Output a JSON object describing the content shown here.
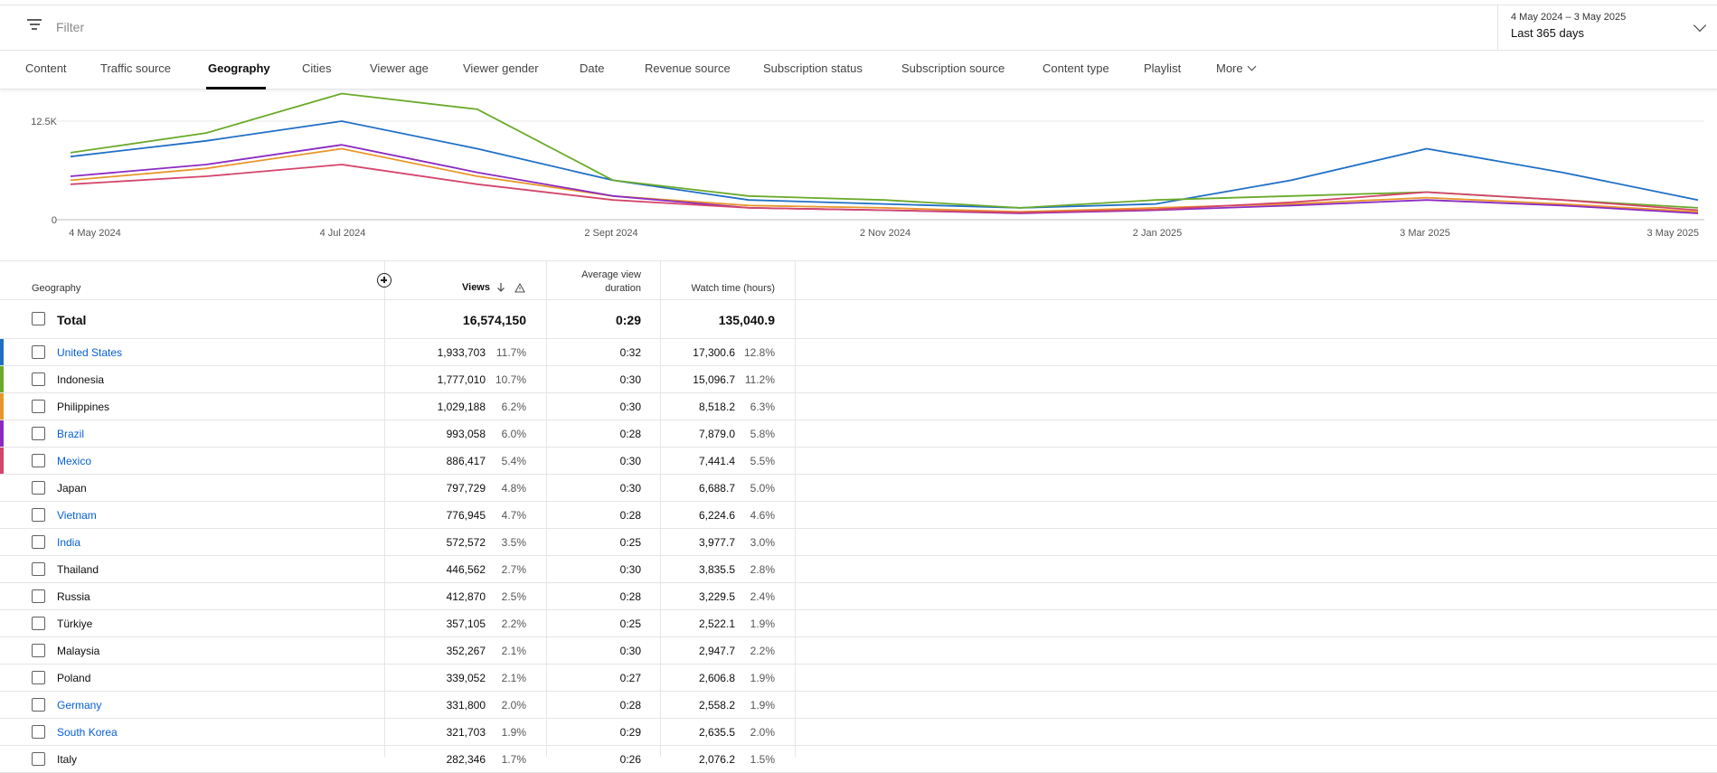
{
  "filter": {
    "placeholder": "Filter",
    "icon": "filter-icon"
  },
  "date": {
    "range": "4 May 2024 – 3 May 2025",
    "preset": "Last 365 days"
  },
  "tabs": [
    {
      "label": "Content"
    },
    {
      "label": "Traffic source"
    },
    {
      "label": "Geography",
      "active": true
    },
    {
      "label": "Cities"
    },
    {
      "label": "Viewer age"
    },
    {
      "label": "Viewer gender"
    },
    {
      "label": "Date"
    },
    {
      "label": "Revenue source"
    },
    {
      "label": "Subscription status"
    },
    {
      "label": "Subscription source"
    },
    {
      "label": "Content type"
    },
    {
      "label": "Playlist"
    },
    {
      "label": "More"
    }
  ],
  "chart_data": {
    "type": "line",
    "y_ticks": [
      "12.5K",
      "0"
    ],
    "ylim": [
      0,
      12500
    ],
    "x_ticks": [
      "4 May 2024",
      "4 Jul 2024",
      "2 Sept 2024",
      "2 Nov 2024",
      "2 Jan 2025",
      "3 Mar 2025",
      "3 May 2025"
    ],
    "x": [
      "May 2024",
      "Jun 2024",
      "Jul 2024",
      "Aug 2024",
      "Sep 2024",
      "Oct 2024",
      "Nov 2024",
      "Dec 2024",
      "Jan 2025",
      "Feb 2025",
      "Mar 2025",
      "Apr 2025",
      "May 2025"
    ],
    "series": [
      {
        "color": "#1f6fc5",
        "values": [
          8000,
          10000,
          12500,
          9000,
          5000,
          2500,
          2000,
          1500,
          2000,
          5000,
          9000,
          6000,
          2500
        ]
      },
      {
        "color": "#6aaa2a",
        "values": [
          8500,
          11000,
          16000,
          14000,
          5000,
          3000,
          2500,
          1500,
          2500,
          3000,
          3500,
          2500,
          1500
        ]
      },
      {
        "color": "#e8962a",
        "values": [
          5000,
          6500,
          9000,
          5500,
          3000,
          1800,
          1500,
          1000,
          1500,
          2000,
          2800,
          2000,
          1000
        ]
      },
      {
        "color": "#8b2ac2",
        "values": [
          5500,
          7000,
          9500,
          6000,
          3000,
          1500,
          1200,
          800,
          1200,
          1800,
          2500,
          1800,
          800
        ]
      },
      {
        "color": "#d4456a",
        "values": [
          4500,
          5500,
          7000,
          4500,
          2500,
          1500,
          1200,
          900,
          1300,
          2200,
          3500,
          2500,
          1200
        ]
      }
    ]
  },
  "table": {
    "headers": {
      "geography": "Geography",
      "views": "Views",
      "avd_line1": "Average view",
      "avd_line2": "duration",
      "watch": "Watch time (hours)"
    },
    "total": {
      "label": "Total",
      "views": "16,574,150",
      "avd": "0:29",
      "watch": "135,040.9"
    },
    "rows": [
      {
        "name": "United States",
        "link": true,
        "color": "#1f6fc5",
        "views": "1,933,703",
        "vpct": "11.7%",
        "avd": "0:32",
        "watch": "17,300.6",
        "wpct": "12.8%"
      },
      {
        "name": "Indonesia",
        "link": false,
        "color": "#6aaa2a",
        "views": "1,777,010",
        "vpct": "10.7%",
        "avd": "0:30",
        "watch": "15,096.7",
        "wpct": "11.2%"
      },
      {
        "name": "Philippines",
        "link": false,
        "color": "#e8962a",
        "views": "1,029,188",
        "vpct": "6.2%",
        "avd": "0:30",
        "watch": "8,518.2",
        "wpct": "6.3%"
      },
      {
        "name": "Brazil",
        "link": true,
        "color": "#8b2ac2",
        "views": "993,058",
        "vpct": "6.0%",
        "avd": "0:28",
        "watch": "7,879.0",
        "wpct": "5.8%"
      },
      {
        "name": "Mexico",
        "link": true,
        "color": "#d4456a",
        "views": "886,417",
        "vpct": "5.4%",
        "avd": "0:30",
        "watch": "7,441.4",
        "wpct": "5.5%"
      },
      {
        "name": "Japan",
        "link": false,
        "color": "",
        "views": "797,729",
        "vpct": "4.8%",
        "avd": "0:30",
        "watch": "6,688.7",
        "wpct": "5.0%"
      },
      {
        "name": "Vietnam",
        "link": true,
        "color": "",
        "views": "776,945",
        "vpct": "4.7%",
        "avd": "0:28",
        "watch": "6,224.6",
        "wpct": "4.6%"
      },
      {
        "name": "India",
        "link": true,
        "color": "",
        "views": "572,572",
        "vpct": "3.5%",
        "avd": "0:25",
        "watch": "3,977.7",
        "wpct": "3.0%"
      },
      {
        "name": "Thailand",
        "link": false,
        "color": "",
        "views": "446,562",
        "vpct": "2.7%",
        "avd": "0:30",
        "watch": "3,835.5",
        "wpct": "2.8%"
      },
      {
        "name": "Russia",
        "link": false,
        "color": "",
        "views": "412,870",
        "vpct": "2.5%",
        "avd": "0:28",
        "watch": "3,229.5",
        "wpct": "2.4%"
      },
      {
        "name": "Türkiye",
        "link": false,
        "color": "",
        "views": "357,105",
        "vpct": "2.2%",
        "avd": "0:25",
        "watch": "2,522.1",
        "wpct": "1.9%"
      },
      {
        "name": "Malaysia",
        "link": false,
        "color": "",
        "views": "352,267",
        "vpct": "2.1%",
        "avd": "0:30",
        "watch": "2,947.7",
        "wpct": "2.2%"
      },
      {
        "name": "Poland",
        "link": false,
        "color": "",
        "views": "339,052",
        "vpct": "2.1%",
        "avd": "0:27",
        "watch": "2,606.8",
        "wpct": "1.9%"
      },
      {
        "name": "Germany",
        "link": true,
        "color": "",
        "views": "331,800",
        "vpct": "2.0%",
        "avd": "0:28",
        "watch": "2,558.2",
        "wpct": "1.9%"
      },
      {
        "name": "South Korea",
        "link": true,
        "color": "",
        "views": "321,703",
        "vpct": "1.9%",
        "avd": "0:29",
        "watch": "2,635.5",
        "wpct": "2.0%"
      },
      {
        "name": "Italy",
        "link": false,
        "color": "",
        "views": "282,346",
        "vpct": "1.7%",
        "avd": "0:26",
        "watch": "2,076.2",
        "wpct": "1.5%"
      }
    ]
  }
}
